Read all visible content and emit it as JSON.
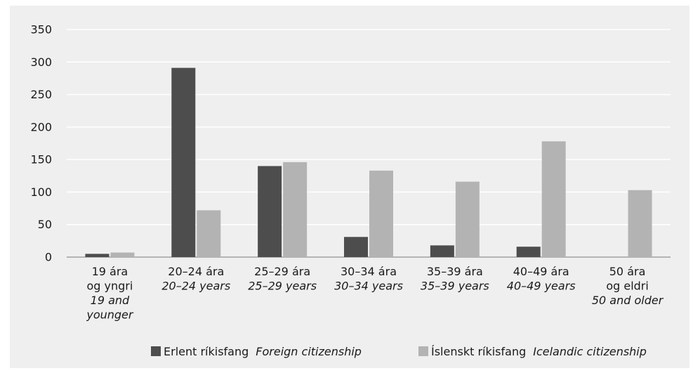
{
  "chart_data": {
    "type": "bar",
    "title": "",
    "xlabel": "",
    "ylabel": "",
    "ylim": [
      0,
      350
    ],
    "yticks": [
      0,
      50,
      100,
      150,
      200,
      250,
      300,
      350
    ],
    "grid": true,
    "legend_position": "bottom",
    "categories": [
      {
        "is": [
          "19 ára",
          "og yngri"
        ],
        "en": [
          "19 and",
          "younger"
        ]
      },
      {
        "is": [
          "20–24 ára"
        ],
        "en": [
          "20–24 years"
        ]
      },
      {
        "is": [
          "25–29 ára"
        ],
        "en": [
          "25–29 years"
        ]
      },
      {
        "is": [
          "30–34 ára"
        ],
        "en": [
          "30–34 years"
        ]
      },
      {
        "is": [
          "35–39 ára"
        ],
        "en": [
          "35–39 years"
        ]
      },
      {
        "is": [
          "40–49 ára"
        ],
        "en": [
          "40–49 years"
        ]
      },
      {
        "is": [
          "50 ára",
          "og eldri"
        ],
        "en": [
          "50 and older"
        ]
      }
    ],
    "series": [
      {
        "name_is": "Erlent ríkisfang",
        "name_en": "Foreign citizenship",
        "color": "#4d4d4d",
        "values": [
          5,
          291,
          140,
          31,
          18,
          16,
          0
        ]
      },
      {
        "name_is": "Íslenskt ríkisfang",
        "name_en": "Icelandic citizenship",
        "color": "#b3b3b3",
        "values": [
          7,
          72,
          146,
          133,
          116,
          178,
          103
        ]
      }
    ]
  }
}
